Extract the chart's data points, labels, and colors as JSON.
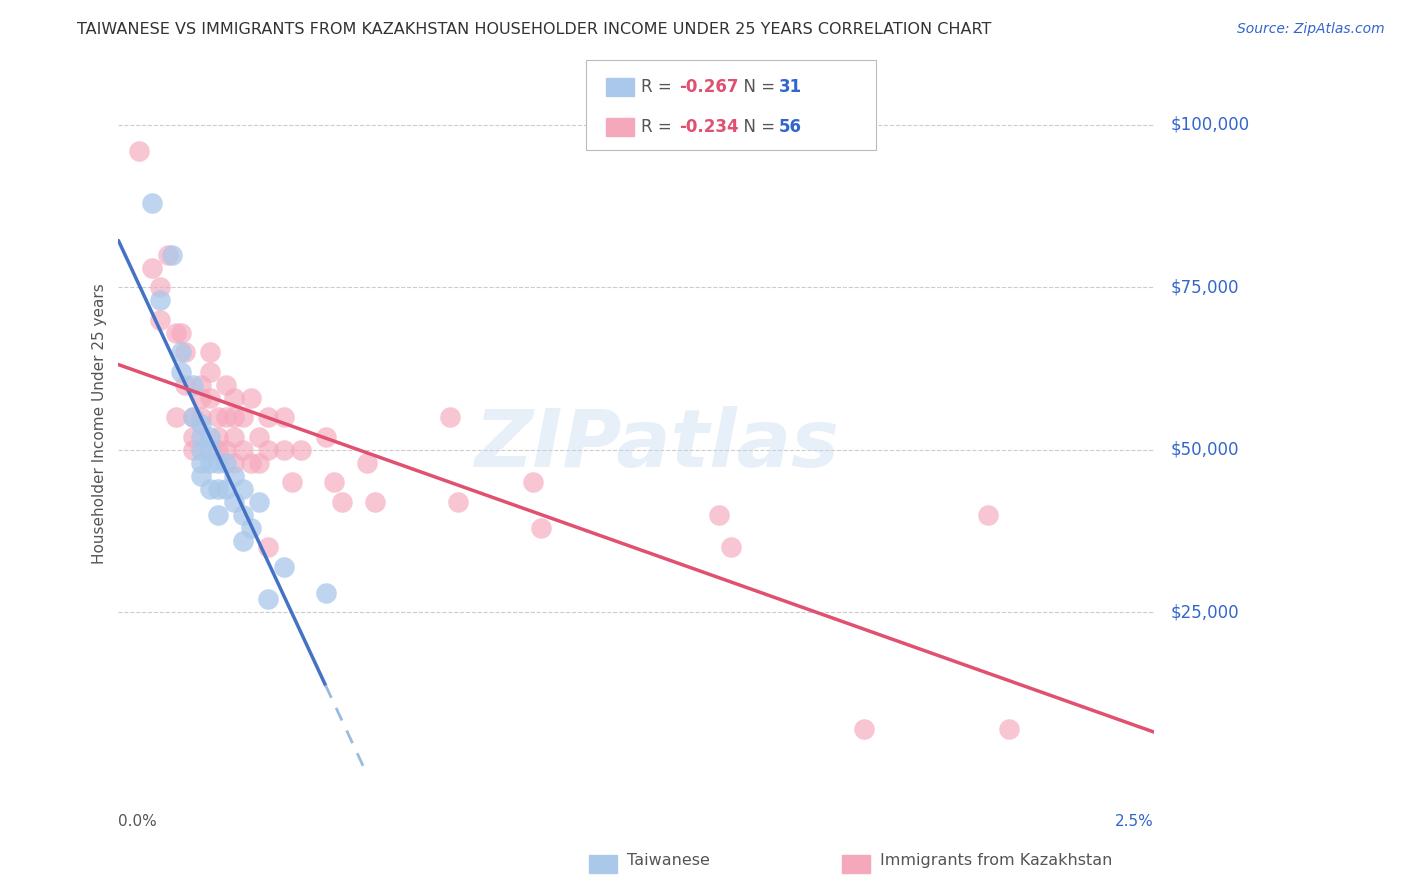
{
  "title": "TAIWANESE VS IMMIGRANTS FROM KAZAKHSTAN HOUSEHOLDER INCOME UNDER 25 YEARS CORRELATION CHART",
  "source": "Source: ZipAtlas.com",
  "ylabel": "Householder Income Under 25 years",
  "ytick_values": [
    0,
    25000,
    50000,
    75000,
    100000
  ],
  "ytick_labels": [
    "",
    "$25,000",
    "$50,000",
    "$75,000",
    "$100,000"
  ],
  "xmin": 0.0,
  "xmax": 0.025,
  "ymin": 0,
  "ymax": 108000,
  "tw_R": "-0.267",
  "tw_N": "31",
  "kz_R": "-0.234",
  "kz_N": "56",
  "taiwanese_x": [
    0.0008,
    0.001,
    0.0013,
    0.0015,
    0.0015,
    0.0018,
    0.0018,
    0.002,
    0.002,
    0.002,
    0.002,
    0.002,
    0.0022,
    0.0022,
    0.0022,
    0.0022,
    0.0024,
    0.0024,
    0.0024,
    0.0026,
    0.0026,
    0.0028,
    0.0028,
    0.003,
    0.003,
    0.003,
    0.0032,
    0.0034,
    0.0036,
    0.004,
    0.005
  ],
  "taiwanese_y": [
    88000,
    73000,
    80000,
    65000,
    62000,
    60000,
    55000,
    54000,
    52000,
    50000,
    48000,
    46000,
    52000,
    50000,
    48000,
    44000,
    48000,
    44000,
    40000,
    48000,
    44000,
    46000,
    42000,
    44000,
    40000,
    36000,
    38000,
    42000,
    27000,
    32000,
    28000
  ],
  "kazakhstan_x": [
    0.0005,
    0.0008,
    0.001,
    0.001,
    0.0012,
    0.0014,
    0.0014,
    0.0015,
    0.0016,
    0.0016,
    0.0018,
    0.0018,
    0.0018,
    0.002,
    0.002,
    0.002,
    0.0022,
    0.0022,
    0.0022,
    0.0024,
    0.0024,
    0.0024,
    0.0026,
    0.0026,
    0.0026,
    0.0028,
    0.0028,
    0.0028,
    0.0028,
    0.003,
    0.003,
    0.0032,
    0.0032,
    0.0034,
    0.0034,
    0.0036,
    0.0036,
    0.0036,
    0.004,
    0.004,
    0.0042,
    0.0044,
    0.005,
    0.0052,
    0.0054,
    0.006,
    0.0062,
    0.008,
    0.0082,
    0.01,
    0.0102,
    0.0145,
    0.0148,
    0.018,
    0.021,
    0.0215
  ],
  "kazakhstan_y": [
    96000,
    78000,
    75000,
    70000,
    80000,
    68000,
    55000,
    68000,
    65000,
    60000,
    55000,
    52000,
    50000,
    60000,
    58000,
    55000,
    65000,
    62000,
    58000,
    55000,
    52000,
    50000,
    60000,
    55000,
    50000,
    58000,
    55000,
    52000,
    48000,
    55000,
    50000,
    58000,
    48000,
    52000,
    48000,
    55000,
    50000,
    35000,
    55000,
    50000,
    45000,
    50000,
    52000,
    45000,
    42000,
    48000,
    42000,
    55000,
    42000,
    45000,
    38000,
    40000,
    35000,
    7000,
    40000,
    7000
  ],
  "blue_line_color": "#4472c4",
  "pink_line_color": "#e05070",
  "dashed_line_color": "#99bbdd",
  "tw_scatter_color": "#aac8ea",
  "kz_scatter_color": "#f5a8bc",
  "bg_color": "#ffffff",
  "grid_color": "#cccccc",
  "watermark": "ZIPatlas"
}
